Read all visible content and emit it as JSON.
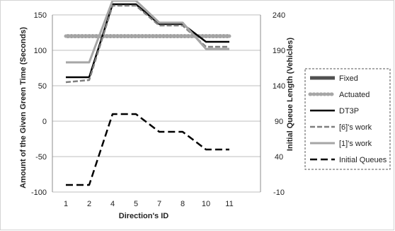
{
  "chart_data": {
    "type": "line",
    "xlabel": "Direction's ID",
    "ylabel_left": "Amount of the Given Green Time (Seconds)",
    "ylabel_right": "Initial Queue Length (Vehicles)",
    "categories": [
      "1",
      "2",
      "4",
      "5",
      "7",
      "8",
      "10",
      "11"
    ],
    "ylim_left": [
      -100,
      150
    ],
    "yticks_left": [
      -100,
      -50,
      0,
      50,
      100,
      150
    ],
    "ylim_right": [
      -10,
      240
    ],
    "yticks_right": [
      -10,
      40,
      90,
      140,
      190,
      240
    ],
    "grid": "horizontal",
    "legend_position": "right",
    "series": [
      {
        "name": "Fixed",
        "axis": "left",
        "color": "#505050",
        "style": "thick-solid",
        "values": [
          120,
          120,
          120,
          120,
          120,
          120,
          120,
          120
        ]
      },
      {
        "name": "Actuated",
        "axis": "left",
        "color": "#a6a6a6",
        "style": "dotted",
        "values": [
          120,
          120,
          120,
          120,
          120,
          120,
          120,
          120
        ]
      },
      {
        "name": "DT3P",
        "axis": "left",
        "color": "#000000",
        "style": "solid",
        "values": [
          62,
          62,
          165,
          165,
          137,
          137,
          112,
          112
        ]
      },
      {
        "name": "[6]'s work",
        "axis": "left",
        "color": "#7f7f7f",
        "style": "dashed",
        "values": [
          55,
          58,
          163,
          163,
          135,
          135,
          105,
          105
        ]
      },
      {
        "name": "[1]'s work",
        "axis": "left",
        "color": "#a6a6a6",
        "style": "solid",
        "values": [
          83,
          83,
          170,
          170,
          139,
          139,
          102,
          102
        ]
      },
      {
        "name": "Initial Queues",
        "axis": "right",
        "color": "#000000",
        "style": "long-dash",
        "values": [
          0,
          0,
          100,
          100,
          75,
          75,
          50,
          50
        ]
      }
    ]
  }
}
